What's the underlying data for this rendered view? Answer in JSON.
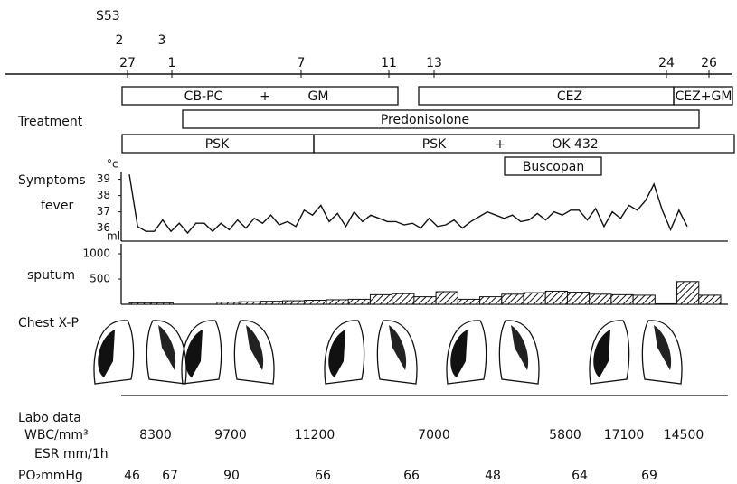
{
  "era": "S53",
  "months": [
    "2",
    "3"
  ],
  "days": [
    "27",
    "1",
    "7",
    "11",
    "13",
    "24",
    "26"
  ],
  "treatment": {
    "label": "Treatment",
    "bars": [
      [
        "CB-PC",
        "+",
        "GM"
      ],
      [
        "CEZ"
      ],
      [
        "CEZ+GM"
      ],
      [
        "Predonisolone"
      ],
      [
        "PSK"
      ],
      [
        "PSK",
        "+",
        "OK 432"
      ],
      [
        "Buscopan"
      ]
    ]
  },
  "symptoms": {
    "label": "Symptoms",
    "fever_label": "fever",
    "sputum_label": "sputum"
  },
  "chart_data": [
    {
      "type": "line",
      "unit": "°c",
      "color": "#111",
      "values": [
        39.3,
        36.1,
        35.8,
        35.8,
        36.5,
        35.8,
        36.3,
        35.7,
        36.3,
        36.3,
        35.8,
        36.3,
        35.9,
        36.5,
        36.0,
        36.6,
        36.3,
        36.8,
        36.2,
        36.4,
        36.1,
        37.1,
        36.8,
        37.4,
        36.4,
        36.9,
        36.1,
        37.0,
        36.4,
        36.8,
        36.6,
        36.4,
        36.4,
        36.2,
        36.3,
        36.0,
        36.6,
        36.1,
        36.2,
        36.5,
        36.0,
        36.4,
        36.7,
        37.0,
        36.8,
        36.6,
        36.8,
        36.4,
        36.5,
        36.9,
        36.5,
        37.0,
        36.8,
        37.1,
        37.1,
        36.5,
        37.2,
        36.1,
        37.0,
        36.6,
        37.4,
        37.1,
        37.7,
        38.7,
        37.1,
        35.9,
        37.1,
        36.1
      ],
      "ylim": [
        35.2,
        39.5
      ],
      "yticks": [
        36,
        37,
        38,
        39
      ]
    },
    {
      "type": "bar",
      "unit": "ml",
      "color": "#111",
      "values": [
        30,
        30,
        0,
        0,
        40,
        50,
        60,
        70,
        80,
        90,
        100,
        190,
        210,
        150,
        250,
        100,
        150,
        200,
        230,
        260,
        240,
        200,
        190,
        180,
        10,
        450,
        180
      ],
      "ylim": [
        0,
        1000
      ],
      "yticks": [
        500,
        1000
      ]
    }
  ],
  "chest_label": "Chest X-P",
  "labo": {
    "label": "Labo data",
    "wbc_label": "WBC/mm³",
    "esr_label": "ESR mm/1h",
    "po2_label": "PO₂mmHg",
    "wbc": [
      8300,
      9700,
      11200,
      7000,
      5800,
      17100,
      14500
    ],
    "po2": [
      46,
      67,
      90,
      66,
      66,
      48,
      64,
      69
    ]
  }
}
